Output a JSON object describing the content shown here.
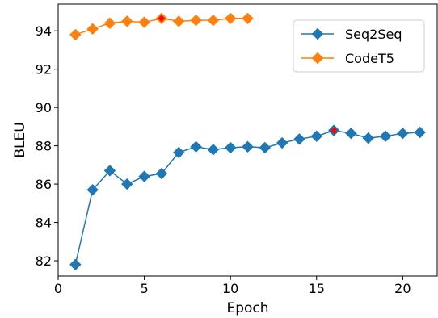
{
  "chart_data": {
    "type": "line",
    "xlabel": "Epoch",
    "ylabel": "BLEU",
    "xlim": [
      0,
      22
    ],
    "ylim": [
      81.2,
      95.4
    ],
    "xticks": [
      0,
      5,
      10,
      15,
      20
    ],
    "yticks": [
      82,
      84,
      86,
      88,
      90,
      92,
      94
    ],
    "grid": false,
    "legend_position": "upper-right",
    "series": [
      {
        "name": "Seq2Seq",
        "color": "#1f77b4",
        "marker": "diamond",
        "x": [
          1,
          2,
          3,
          4,
          5,
          6,
          7,
          8,
          9,
          10,
          11,
          12,
          13,
          14,
          15,
          16,
          17,
          18,
          19,
          20,
          21
        ],
        "y": [
          81.8,
          85.7,
          86.7,
          86.0,
          86.4,
          86.55,
          87.65,
          87.95,
          87.8,
          87.9,
          87.95,
          87.9,
          88.15,
          88.35,
          88.5,
          88.8,
          88.65,
          88.4,
          88.5,
          88.65,
          88.7
        ],
        "highlight_index": 15
      },
      {
        "name": "CodeT5",
        "color": "#ff7f0e",
        "marker": "diamond",
        "x": [
          1,
          2,
          3,
          4,
          5,
          6,
          7,
          8,
          9,
          10,
          11
        ],
        "y": [
          93.8,
          94.1,
          94.4,
          94.5,
          94.45,
          94.65,
          94.5,
          94.55,
          94.55,
          94.65,
          94.65
        ],
        "highlight_index": 5
      }
    ],
    "highlight_color": "#ff0000"
  }
}
